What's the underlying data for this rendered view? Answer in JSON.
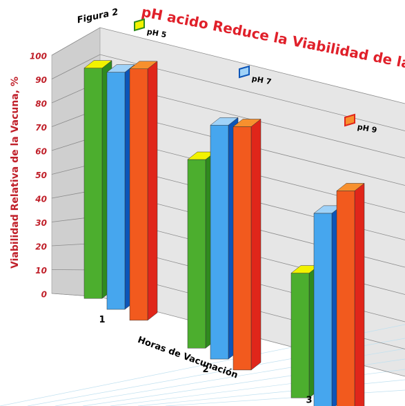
{
  "chart_data": {
    "type": "bar3d",
    "figure_label": "Figura 2",
    "title": "pH acido Reduce la Viabilidad de la Vacuna",
    "y_label": "Viabilidad Relativa de la Vacuna, %",
    "x_label": "Horas de Vacunación",
    "categories": [
      "1",
      "2",
      "3"
    ],
    "series": [
      {
        "name": "pH 5",
        "color": "#4cae2e",
        "top_color": "#f2f200",
        "side_color": "#2f8a1e",
        "values": [
          95,
          63,
          35
        ]
      },
      {
        "name": "pH 7",
        "color": "#46a6ee",
        "top_color": "#9fd2f8",
        "side_color": "#0c55b8",
        "values": [
          93,
          75,
          53
        ]
      },
      {
        "name": "pH 9",
        "color": "#f25a1e",
        "top_color": "#f7902e",
        "side_color": "#e0261a",
        "values": [
          94,
          75,
          60
        ]
      }
    ],
    "ylim": [
      0,
      100
    ],
    "yticks": [
      0,
      10,
      20,
      30,
      40,
      50,
      60,
      70,
      80,
      90,
      100
    ],
    "grid": true
  }
}
